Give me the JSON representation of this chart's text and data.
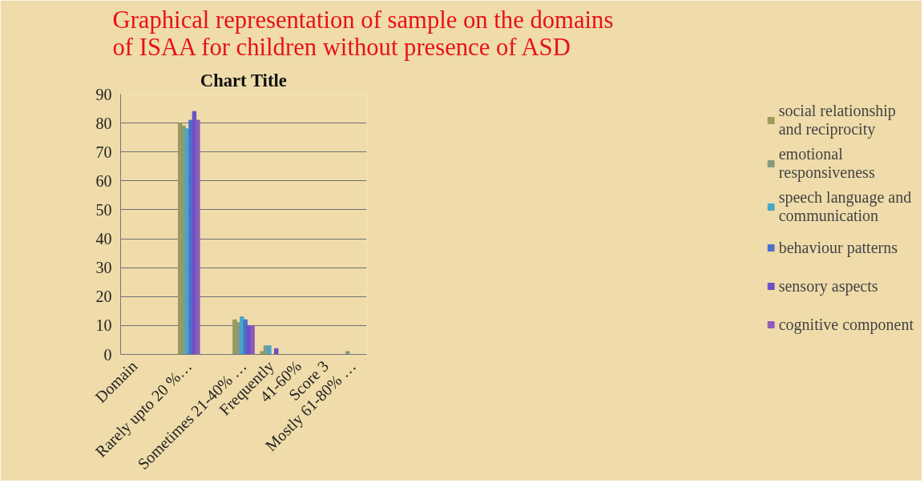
{
  "chart_data": {
    "type": "bar",
    "title": "Graphical representation of sample on the domains of ISAA for children without presence of ASD",
    "subtitle": "Chart Title",
    "categories": [
      "Domain",
      null,
      "Rarely upto 20 %…",
      null,
      "Sometimes 21-40% …",
      "Frequently",
      "41-60%",
      "Score 3",
      "Mostly 61-80% …"
    ],
    "series": [
      {
        "name": "social relationship and reciprocity",
        "color": "#9c9a5c",
        "values": [
          0,
          0,
          80,
          0,
          12,
          1,
          0,
          0,
          0
        ]
      },
      {
        "name": "emotional responsiveness",
        "color": "#889a7c",
        "values": [
          0,
          0,
          79,
          0,
          11,
          3,
          0,
          0,
          1
        ]
      },
      {
        "name": "speech language and communication",
        "color": "#4aa6c6",
        "values": [
          0,
          0,
          78,
          0,
          13,
          3,
          0,
          0,
          0
        ]
      },
      {
        "name": "behaviour patterns",
        "color": "#4c70cc",
        "values": [
          0,
          0,
          81,
          0,
          12,
          0,
          0,
          0,
          0
        ]
      },
      {
        "name": "sensory aspects",
        "color": "#6a50c4",
        "values": [
          0,
          0,
          84,
          0,
          10,
          2,
          0,
          0,
          0
        ]
      },
      {
        "name": "cognitive component",
        "color": "#8c5cb8",
        "values": [
          0,
          0,
          81,
          0,
          10,
          0,
          0,
          0,
          0
        ]
      }
    ],
    "ylim": [
      0,
      90
    ],
    "yticks": [
      0,
      10,
      20,
      30,
      40,
      50,
      60,
      70,
      80,
      90
    ],
    "grid": "y",
    "legend": "right"
  }
}
